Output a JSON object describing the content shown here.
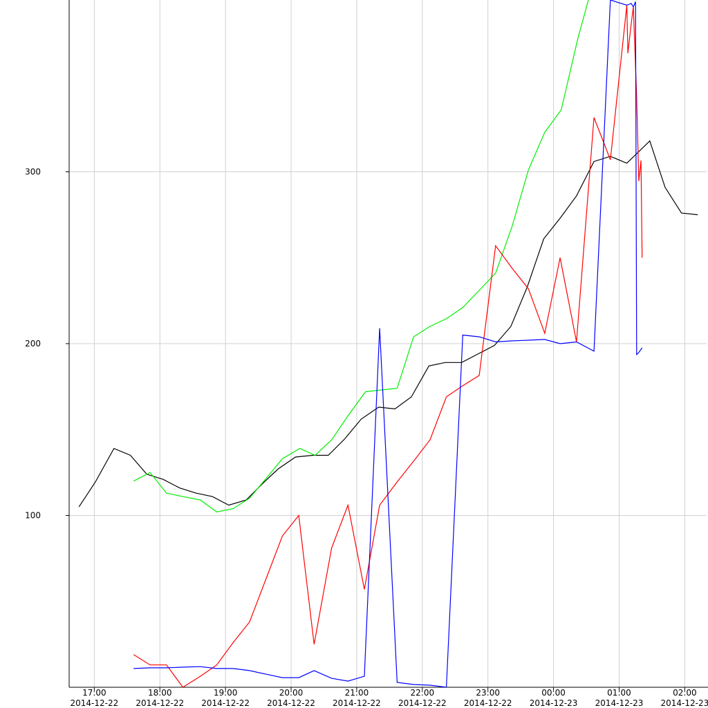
{
  "chart_data": {
    "type": "line",
    "xlim": [
      "2014-12-22 16:37",
      "2014-12-23 02:20"
    ],
    "ylim": [
      0,
      400
    ],
    "yticks": [
      100,
      200,
      300
    ],
    "xticks": [
      {
        "value": "2014-12-22 17:00",
        "label": [
          "17:00",
          "2014-12-22"
        ]
      },
      {
        "value": "2014-12-22 18:00",
        "label": [
          "18:00",
          "2014-12-22"
        ]
      },
      {
        "value": "2014-12-22 19:00",
        "label": [
          "19:00",
          "2014-12-22"
        ]
      },
      {
        "value": "2014-12-22 20:00",
        "label": [
          "20:00",
          "2014-12-22"
        ]
      },
      {
        "value": "2014-12-22 21:00",
        "label": [
          "21:00",
          "2014-12-22"
        ]
      },
      {
        "value": "2014-12-22 22:00",
        "label": [
          "22:00",
          "2014-12-22"
        ]
      },
      {
        "value": "2014-12-22 23:00",
        "label": [
          "23:00",
          "2014-12-22"
        ]
      },
      {
        "value": "2014-12-23 00:00",
        "label": [
          "00:00",
          "2014-12-23"
        ]
      },
      {
        "value": "2014-12-23 01:00",
        "label": [
          "01:00",
          "2014-12-23"
        ]
      },
      {
        "value": "2014-12-23 02:00",
        "label": [
          "02:00",
          "2014-12-23"
        ]
      }
    ],
    "grid": true,
    "series": [
      {
        "color": "#000000",
        "x": [
          "2014-12-22 16:46",
          "2014-12-22 17:01",
          "2014-12-22 17:18",
          "2014-12-22 17:33",
          "2014-12-22 17:48",
          "2014-12-22 18:03",
          "2014-12-22 18:18",
          "2014-12-22 18:33",
          "2014-12-22 18:48",
          "2014-12-22 19:03",
          "2014-12-22 19:19",
          "2014-12-22 19:33",
          "2014-12-22 19:48",
          "2014-12-22 20:04",
          "2014-12-22 20:20",
          "2014-12-22 20:34",
          "2014-12-22 20:49",
          "2014-12-22 21:04",
          "2014-12-22 21:20",
          "2014-12-22 21:35",
          "2014-12-22 21:50",
          "2014-12-22 22:06",
          "2014-12-22 22:21",
          "2014-12-22 22:36",
          "2014-12-22 22:51",
          "2014-12-22 23:06",
          "2014-12-22 23:21",
          "2014-12-22 23:36",
          "2014-12-22 23:51",
          "2014-12-23 00:06",
          "2014-12-23 00:21",
          "2014-12-23 00:37",
          "2014-12-23 00:52",
          "2014-12-23 01:07",
          "2014-12-23 01:28",
          "2014-12-23 01:42",
          "2014-12-23 01:57",
          "2014-12-23 02:12"
        ],
        "values": [
          105,
          119.5,
          139,
          135,
          124,
          121,
          116,
          113,
          111,
          106,
          109,
          118,
          127,
          134,
          135,
          135,
          144.5,
          156,
          163,
          162,
          169,
          187,
          189,
          189,
          194,
          199,
          210,
          233,
          261,
          273,
          286,
          306,
          309,
          305,
          318,
          291,
          276,
          275
        ]
      },
      {
        "color": "#00ee00",
        "x": [
          "2014-12-22 17:36",
          "2014-12-22 17:51",
          "2014-12-22 18:06",
          "2014-12-22 18:21",
          "2014-12-22 18:37",
          "2014-12-22 18:52",
          "2014-12-22 19:07",
          "2014-12-22 19:22",
          "2014-12-22 19:37",
          "2014-12-22 19:52",
          "2014-12-22 20:08",
          "2014-12-22 20:22",
          "2014-12-22 20:37",
          "2014-12-22 20:52",
          "2014-12-22 21:08",
          "2014-12-22 21:22",
          "2014-12-22 21:37",
          "2014-12-22 21:52",
          "2014-12-22 22:07",
          "2014-12-22 22:22",
          "2014-12-22 22:37",
          "2014-12-22 22:52",
          "2014-12-22 23:07",
          "2014-12-22 23:22",
          "2014-12-22 23:37",
          "2014-12-22 23:52",
          "2014-12-23 00:07",
          "2014-12-23 00:22",
          "2014-12-23 00:37"
        ],
        "values": [
          120,
          125,
          113,
          111,
          109,
          102,
          104,
          110,
          121.5,
          133,
          139,
          135,
          144,
          158,
          172,
          173,
          174,
          204,
          210,
          214.5,
          221,
          231,
          241,
          268,
          301,
          323,
          336,
          377,
          412
        ]
      },
      {
        "color": "#ff0000",
        "x": [
          "2014-12-22 17:36",
          "2014-12-22 17:51",
          "2014-12-22 18:06",
          "2014-12-22 18:21",
          "2014-12-22 18:37",
          "2014-12-22 18:52",
          "2014-12-22 19:07",
          "2014-12-22 19:22",
          "2014-12-22 19:37",
          "2014-12-22 19:52",
          "2014-12-22 20:07",
          "2014-12-22 20:21",
          "2014-12-22 20:37",
          "2014-12-22 20:52",
          "2014-12-22 21:07",
          "2014-12-22 21:21",
          "2014-12-22 21:37",
          "2014-12-22 21:52",
          "2014-12-22 22:07",
          "2014-12-22 22:22",
          "2014-12-22 22:37",
          "2014-12-22 22:52",
          "2014-12-22 23:07",
          "2014-12-22 23:22",
          "2014-12-22 23:37",
          "2014-12-22 23:52",
          "2014-12-23 00:06",
          "2014-12-23 00:21",
          "2014-12-23 00:37",
          "2014-12-23 00:52",
          "2014-12-23 01:07",
          "2014-12-23 01:08",
          "2014-12-23 01:11",
          "2014-12-23 01:13",
          "2014-12-23 01:16",
          "2014-12-23 01:18",
          "2014-12-23 01:20",
          "2014-12-23 01:21"
        ],
        "values": [
          19,
          13,
          13,
          0,
          6.4,
          13,
          26,
          38,
          63,
          88,
          100,
          25,
          81,
          106,
          57,
          106,
          119.5,
          131.6,
          144,
          169,
          175.5,
          181.5,
          257,
          244,
          232,
          206,
          250,
          201,
          331.6,
          307,
          397,
          369,
          386,
          396,
          343.7,
          294.6,
          306.6,
          250
        ]
      },
      {
        "color": "#0000ff",
        "x": [
          "2014-12-22 17:36",
          "2014-12-22 17:51",
          "2014-12-22 18:06",
          "2014-12-22 18:21",
          "2014-12-22 18:37",
          "2014-12-22 18:52",
          "2014-12-22 19:07",
          "2014-12-22 19:22",
          "2014-12-22 19:37",
          "2014-12-22 19:52",
          "2014-12-22 20:07",
          "2014-12-22 20:21",
          "2014-12-22 20:37",
          "2014-12-22 20:52",
          "2014-12-22 21:07",
          "2014-12-22 21:21",
          "2014-12-22 21:37",
          "2014-12-22 21:52",
          "2014-12-22 22:07",
          "2014-12-22 22:22",
          "2014-12-22 22:37",
          "2014-12-22 22:52",
          "2014-12-22 23:07",
          "2014-12-22 23:22",
          "2014-12-22 23:37",
          "2014-12-22 23:52",
          "2014-12-23 00:06",
          "2014-12-23 00:21",
          "2014-12-23 00:37",
          "2014-12-23 00:52",
          "2014-12-23 01:07",
          "2014-12-23 01:11",
          "2014-12-23 01:13",
          "2014-12-23 01:15",
          "2014-12-23 01:16",
          "2014-12-23 01:18",
          "2014-12-23 01:21"
        ],
        "values": [
          10.9,
          11.3,
          11.3,
          11.7,
          12,
          10.9,
          10.9,
          9.7,
          7.6,
          5.6,
          5.6,
          9.7,
          5.2,
          3.6,
          6.4,
          209,
          2.8,
          1.6,
          1.2,
          0,
          205,
          204,
          201,
          201.6,
          202,
          202.4,
          200,
          201,
          195.6,
          400,
          397,
          398,
          396,
          399,
          193.6,
          194.8,
          197.6
        ]
      }
    ]
  }
}
